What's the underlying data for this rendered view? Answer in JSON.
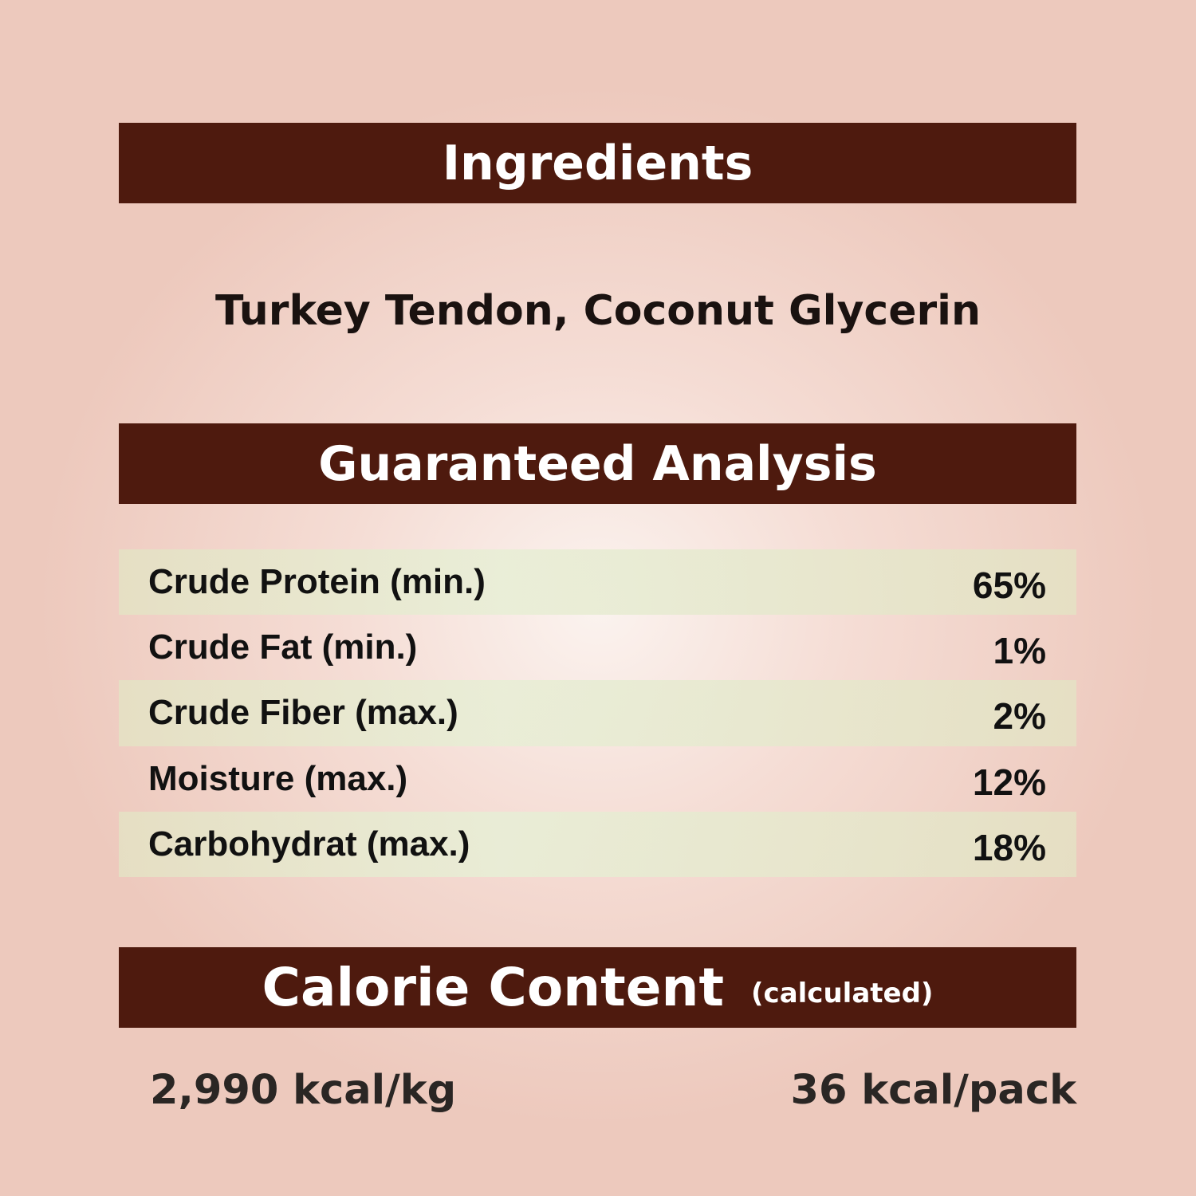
{
  "ingredients": {
    "heading": "Ingredients",
    "text": "Turkey Tendon, Coconut Glycerin"
  },
  "analysis": {
    "heading": "Guaranteed Analysis",
    "rows": [
      {
        "label": "Crude Protein (min.)",
        "value": "65%"
      },
      {
        "label": "Crude Fat (min.)",
        "value": "1%"
      },
      {
        "label": "Crude Fiber (max.)",
        "value": "2%"
      },
      {
        "label": "Moisture (max.)",
        "value": "12%"
      },
      {
        "label": "Carbohydrat (max.)",
        "value": "18%"
      }
    ]
  },
  "calories": {
    "heading": "Calorie Content",
    "subheading": "(calculated)",
    "per_kg": "2,990 kcal/kg",
    "per_pack": "36 kcal/pack"
  },
  "colors": {
    "banner": "#4e1a0e",
    "row_shade": "#e6e6cc",
    "background": "#f0d0c6"
  }
}
